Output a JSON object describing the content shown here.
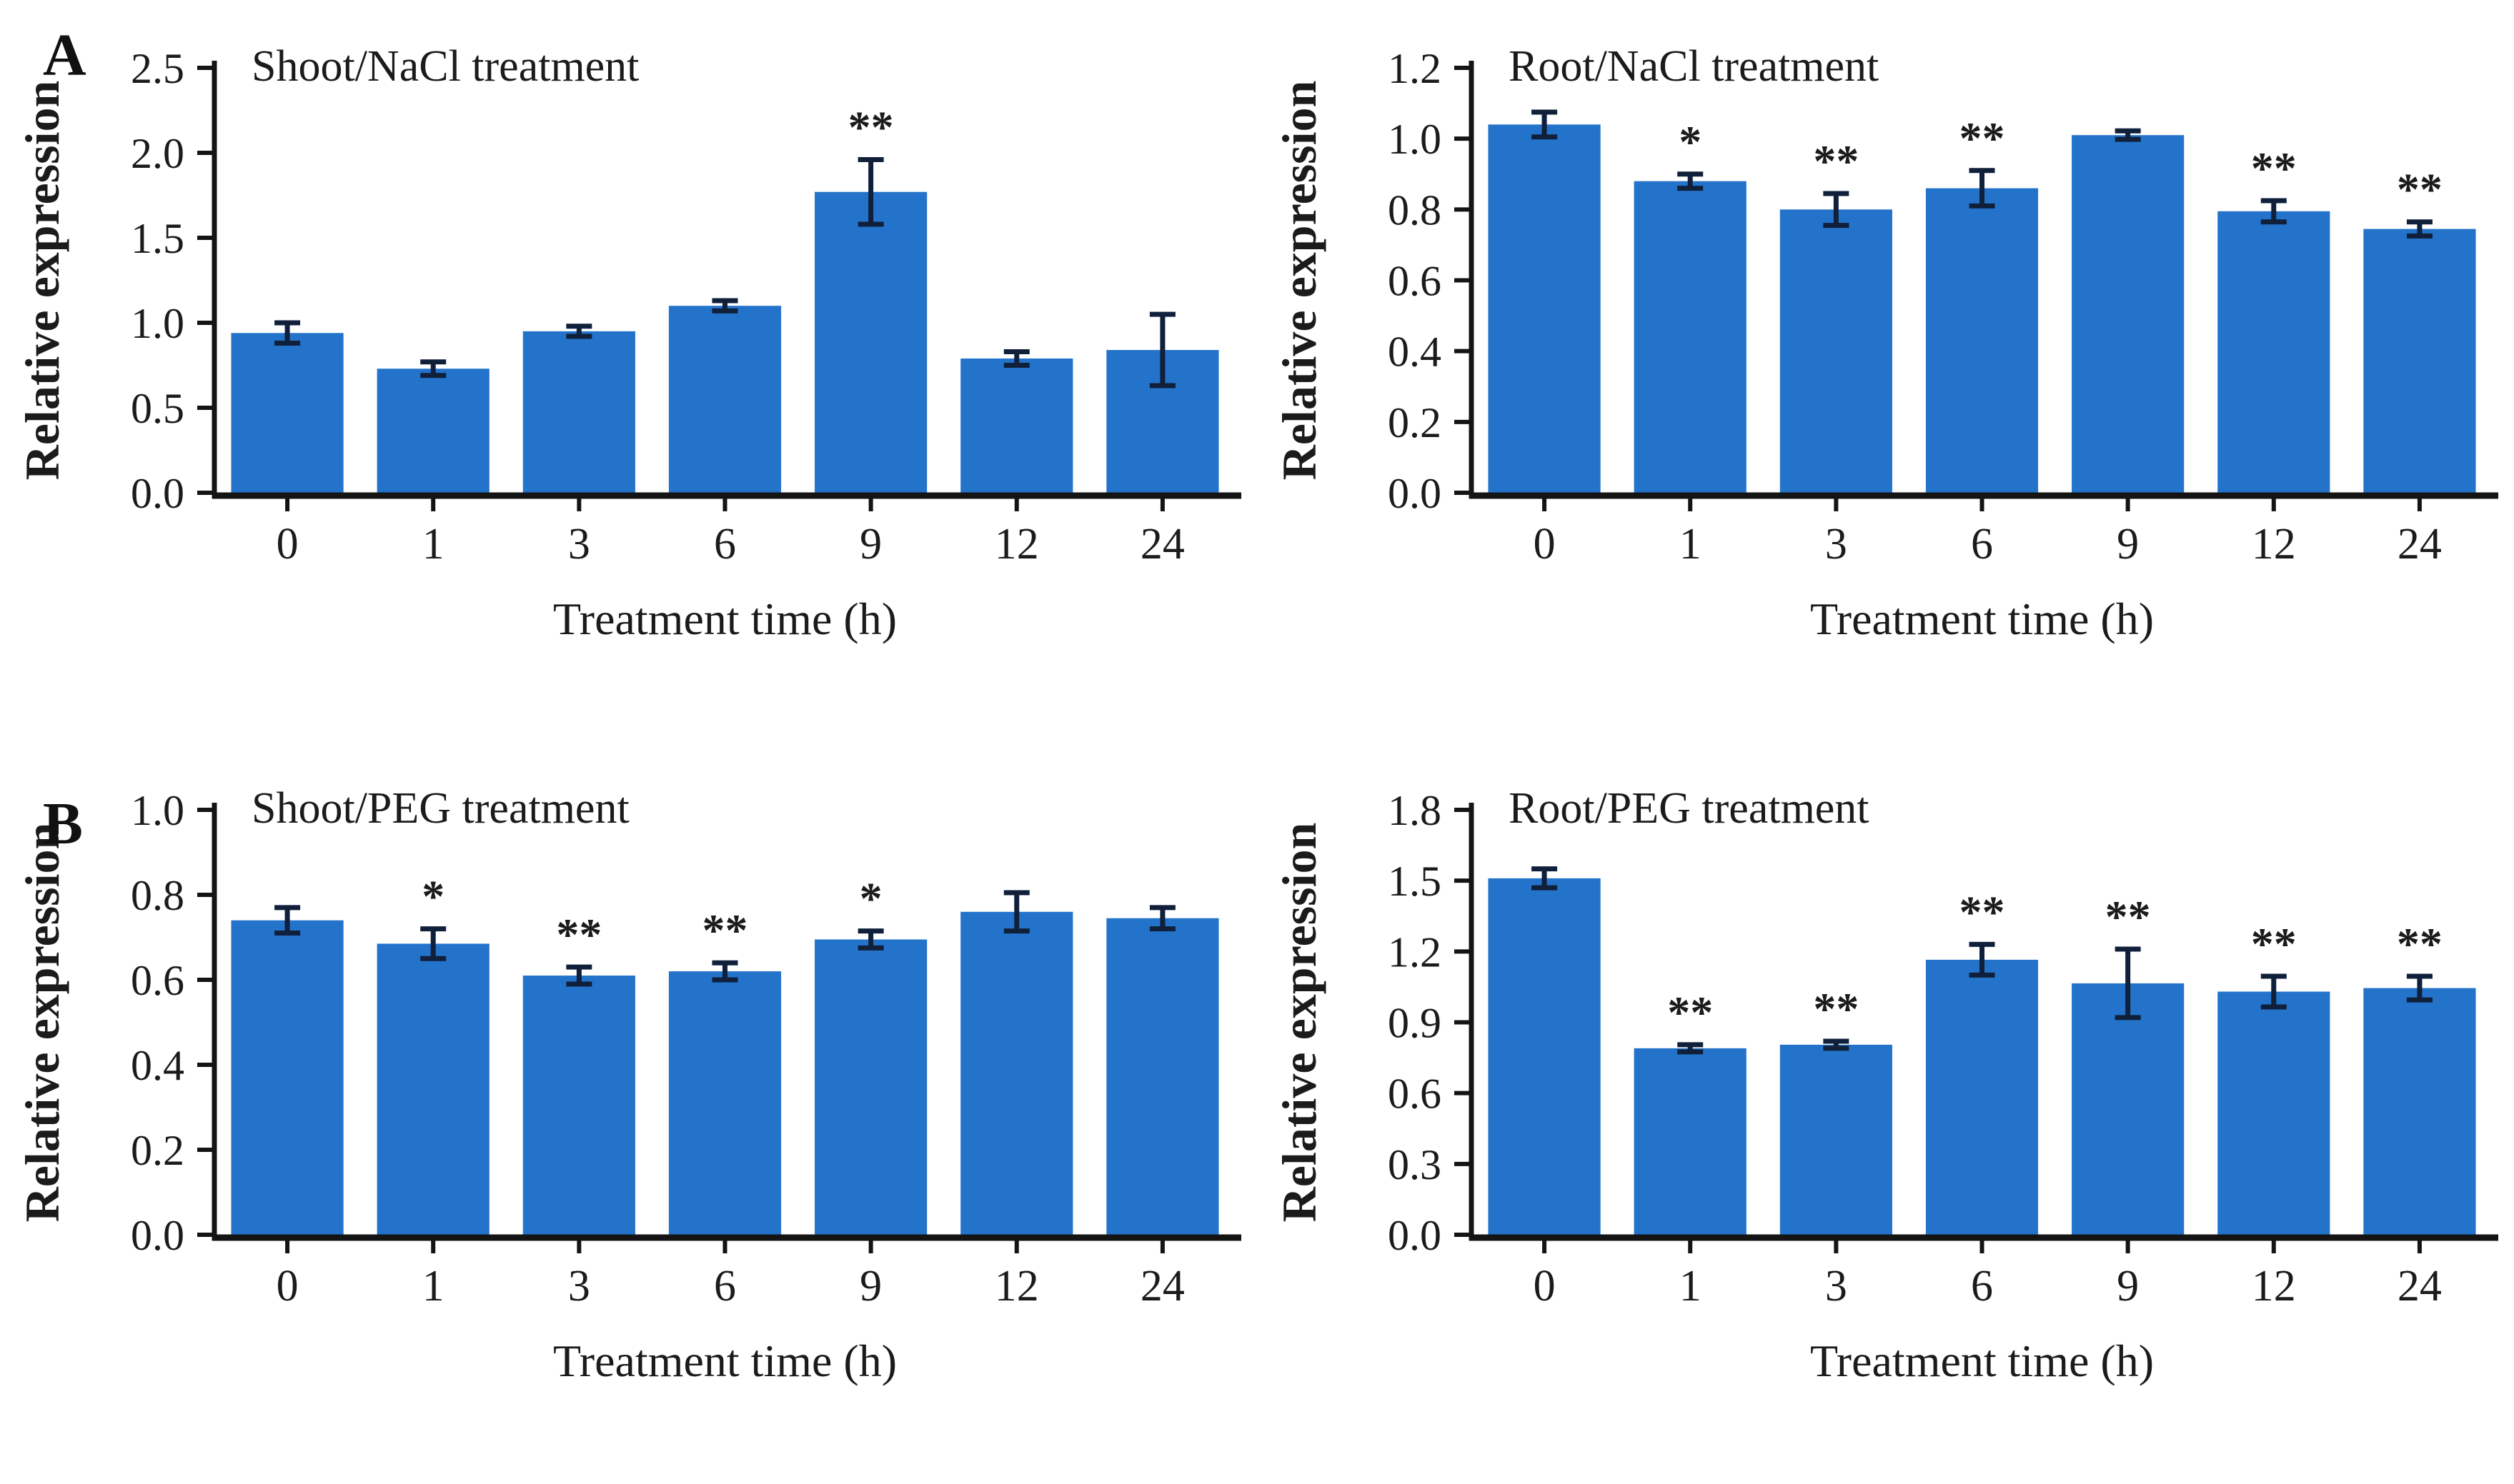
{
  "figure": {
    "panel_letters": {
      "a": "A",
      "b": "B"
    }
  },
  "colors": {
    "bar": "#2473cb",
    "error_bar": "#101f3a",
    "axis": "#141414",
    "text": "#1b1b1b"
  },
  "chart_data": [
    {
      "type": "bar",
      "panel": "A",
      "position": "top-left",
      "title": "Shoot/NaCl treatment",
      "xlabel": "Treatment time (h)",
      "ylabel": "Relative expression",
      "categories": [
        "0",
        "1",
        "3",
        "6",
        "9",
        "12",
        "24"
      ],
      "values": [
        0.94,
        0.73,
        0.95,
        1.1,
        1.77,
        0.79,
        0.84
      ],
      "errors": [
        0.06,
        0.04,
        0.03,
        0.03,
        0.19,
        0.04,
        0.21
      ],
      "significance": [
        "",
        "",
        "",
        "",
        "**",
        "",
        ""
      ],
      "ylim": [
        0,
        2.5
      ],
      "yticks": [
        "0.0",
        "0.5",
        "1.0",
        "1.5",
        "2.0",
        "2.5"
      ],
      "grid": false,
      "legend": null
    },
    {
      "type": "bar",
      "panel": "A",
      "position": "top-right",
      "title": "Root/NaCl treatment",
      "xlabel": "Treatment time (h)",
      "ylabel": "Relative expression",
      "categories": [
        "0",
        "1",
        "3",
        "6",
        "9",
        "12",
        "24"
      ],
      "values": [
        1.04,
        0.88,
        0.8,
        0.86,
        1.01,
        0.795,
        0.745
      ],
      "errors": [
        0.035,
        0.02,
        0.045,
        0.05,
        0.012,
        0.03,
        0.02
      ],
      "significance": [
        "",
        "*",
        "**",
        "**",
        "",
        "**",
        "**"
      ],
      "ylim": [
        0,
        1.2
      ],
      "yticks": [
        "0.0",
        "0.2",
        "0.4",
        "0.6",
        "0.8",
        "1.0",
        "1.2"
      ],
      "grid": false,
      "legend": null
    },
    {
      "type": "bar",
      "panel": "B",
      "position": "bottom-left",
      "title": "Shoot/PEG treatment",
      "xlabel": "Treatment time (h)",
      "ylabel": "Relative expression",
      "categories": [
        "0",
        "1",
        "3",
        "6",
        "9",
        "12",
        "24"
      ],
      "values": [
        0.74,
        0.685,
        0.61,
        0.62,
        0.695,
        0.76,
        0.745
      ],
      "errors": [
        0.03,
        0.035,
        0.02,
        0.02,
        0.02,
        0.045,
        0.025
      ],
      "significance": [
        "",
        "*",
        "**",
        "**",
        "*",
        "",
        ""
      ],
      "ylim": [
        0,
        1.0
      ],
      "yticks": [
        "0.0",
        "0.2",
        "0.4",
        "0.6",
        "0.8",
        "1.0"
      ],
      "grid": false,
      "legend": null
    },
    {
      "type": "bar",
      "panel": "B",
      "position": "bottom-right",
      "title": "Root/PEG treatment",
      "xlabel": "Treatment time (h)",
      "ylabel": "Relative expression",
      "categories": [
        "0",
        "1",
        "3",
        "6",
        "9",
        "12",
        "24"
      ],
      "values": [
        1.51,
        0.79,
        0.805,
        1.165,
        1.065,
        1.03,
        1.045
      ],
      "errors": [
        0.04,
        0.015,
        0.015,
        0.065,
        0.145,
        0.065,
        0.05
      ],
      "significance": [
        "",
        "**",
        "**",
        "**",
        "**",
        "**",
        "**"
      ],
      "ylim": [
        0,
        1.8
      ],
      "yticks": [
        "0.0",
        "0.3",
        "0.6",
        "0.9",
        "1.2",
        "1.5",
        "1.8"
      ],
      "grid": false,
      "legend": null
    }
  ]
}
